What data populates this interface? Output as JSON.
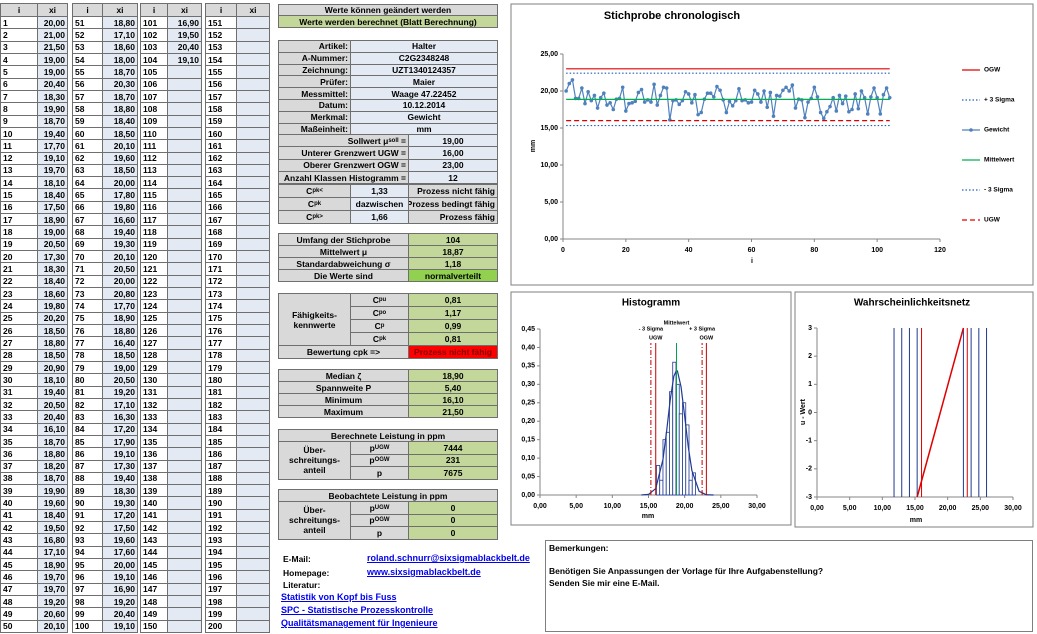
{
  "samples": {
    "header": [
      "i",
      "xi"
    ],
    "groups": [
      {
        "i": [
          1,
          2,
          3,
          4,
          5,
          6,
          7,
          8,
          9,
          10,
          11,
          12,
          13,
          14,
          15,
          16,
          17,
          18,
          19,
          20,
          21,
          22,
          23,
          24,
          25,
          26,
          27,
          28,
          29,
          30,
          31,
          32,
          33,
          34,
          35,
          36,
          37,
          38,
          39,
          40,
          41,
          42,
          43,
          44,
          45,
          46,
          47,
          48,
          49,
          50
        ],
        "xi": [
          "20,00",
          "21,00",
          "21,50",
          "19,00",
          "19,00",
          "20,40",
          "18,30",
          "19,90",
          "18,70",
          "19,40",
          "17,70",
          "19,10",
          "19,70",
          "18,10",
          "18,40",
          "17,50",
          "18,90",
          "19,00",
          "20,50",
          "17,30",
          "18,30",
          "18,40",
          "18,60",
          "19,80",
          "20,20",
          "18,50",
          "18,80",
          "18,50",
          "20,90",
          "18,10",
          "19,40",
          "20,50",
          "20,40",
          "16,10",
          "18,70",
          "18,80",
          "18,20",
          "18,70",
          "19,90",
          "19,60",
          "18,40",
          "19,50",
          "16,80",
          "17,10",
          "18,90",
          "19,70",
          "19,70",
          "19,20",
          "20,60",
          "20,10"
        ]
      },
      {
        "i": [
          51,
          52,
          53,
          54,
          55,
          56,
          57,
          58,
          59,
          60,
          61,
          62,
          63,
          64,
          65,
          66,
          67,
          68,
          69,
          70,
          71,
          72,
          73,
          74,
          75,
          76,
          77,
          78,
          79,
          80,
          81,
          82,
          83,
          84,
          85,
          86,
          87,
          88,
          89,
          90,
          91,
          92,
          93,
          94,
          95,
          96,
          97,
          98,
          99,
          100
        ],
        "xi": [
          "18,80",
          "17,10",
          "18,60",
          "18,00",
          "18,70",
          "20,30",
          "18,70",
          "18,80",
          "18,40",
          "18,50",
          "20,10",
          "19,60",
          "18,50",
          "20,00",
          "17,80",
          "19,80",
          "16,60",
          "19,40",
          "19,30",
          "20,10",
          "20,50",
          "20,00",
          "20,80",
          "17,70",
          "18,90",
          "18,80",
          "16,40",
          "18,50",
          "19,00",
          "20,50",
          "19,20",
          "17,10",
          "16,30",
          "17,20",
          "17,90",
          "19,10",
          "17,30",
          "19,40",
          "18,30",
          "19,30",
          "17,20",
          "17,50",
          "19,60",
          "17,60",
          "20,00",
          "19,10",
          "16,90",
          "19,20",
          "20,40",
          "19,10"
        ]
      },
      {
        "i": [
          101,
          102,
          103,
          104,
          105,
          106,
          107,
          108,
          109,
          110,
          111,
          112,
          113,
          114,
          115,
          116,
          117,
          118,
          119,
          120,
          121,
          122,
          123,
          124,
          125,
          126,
          127,
          128,
          129,
          130,
          131,
          132,
          133,
          134,
          135,
          136,
          137,
          138,
          139,
          140,
          141,
          142,
          143,
          144,
          145,
          146,
          147,
          148,
          149,
          150
        ],
        "xi": [
          "16,90",
          "19,50",
          "20,40",
          "19,10"
        ]
      },
      {
        "i": [
          151,
          152,
          153,
          154,
          155,
          156,
          157,
          158,
          159,
          160,
          161,
          162,
          163,
          164,
          165,
          166,
          167,
          168,
          169,
          170,
          171,
          172,
          173,
          174,
          175,
          176,
          177,
          178,
          179,
          180,
          181,
          182,
          183,
          184,
          185,
          186,
          187,
          188,
          189,
          190,
          191,
          192,
          193,
          194,
          195,
          196,
          197,
          198,
          199,
          200
        ]
      }
    ]
  },
  "status": {
    "editable": "Werte können geändert werden",
    "computed": "Werte werden berechnet (Blatt Berechnung)"
  },
  "master_data": [
    [
      "Artikel:",
      "Halter"
    ],
    [
      "A-Nummer:",
      "C2G2348248"
    ],
    [
      "Zeichnung:",
      "UZT1340124357"
    ],
    [
      "Prüfer:",
      "Maier"
    ],
    [
      "Messmittel:",
      "Waage 47.22452"
    ],
    [
      "Datum:",
      "10.12.2014"
    ],
    [
      "Merkmal:",
      "Gewicht"
    ],
    [
      "Maßeinheit:",
      "mm"
    ]
  ],
  "limits": [
    [
      {
        "base": "Sollwert μ",
        "sub": "soll",
        "tail": " ="
      },
      "19,00"
    ],
    [
      "Unterer Grenzwert UGW =",
      "16,00"
    ],
    [
      "Oberer Grenzwert OGW =",
      "23,00"
    ],
    [
      "Anzahl Klassen Histogramm =",
      "12"
    ]
  ],
  "thresholds": [
    [
      {
        "base": "C",
        "sub": "pk<"
      },
      "1,33",
      "Prozess nicht fähig"
    ],
    [
      {
        "base": "C",
        "sub": "pk"
      },
      "dazwischen",
      "Prozess bedingt fähig"
    ],
    [
      {
        "base": "C",
        "sub": "pk>"
      },
      "1,66",
      "Prozess fähig"
    ]
  ],
  "sample_stats": [
    [
      "Umfang der Stichprobe",
      "104"
    ],
    [
      "Mittelwert μ",
      "18,87"
    ],
    [
      "Standardabweichung σ",
      "1,18"
    ],
    [
      "Die Werte sind",
      "normalverteilt"
    ]
  ],
  "capability": {
    "label": "Fähigkeits-kennwerte",
    "rows": [
      [
        {
          "base": "C",
          "sub": "pu"
        },
        "0,81"
      ],
      [
        {
          "base": "C",
          "sub": "po"
        },
        "1,17"
      ],
      [
        {
          "base": "C",
          "sub": "p"
        },
        "0,99"
      ],
      [
        {
          "base": "C",
          "sub": "pk"
        },
        "0,81"
      ]
    ],
    "rating": [
      "Bewertung cpk =>",
      "Prozess nicht fähig"
    ]
  },
  "position_stats": [
    [
      "Median ζ",
      "18,90"
    ],
    [
      "Spannweite P",
      "5,40"
    ],
    [
      "Minimum",
      "16,10"
    ],
    [
      "Maximum",
      "21,50"
    ]
  ],
  "calculated_ppm": {
    "title": "Berechnete Leistung in ppm",
    "label": "Über- schreitungs- anteil",
    "rows": [
      [
        {
          "base": "p",
          "sub": "UGW"
        },
        "7444"
      ],
      [
        {
          "base": "p",
          "sub": "OGW"
        },
        "231"
      ],
      [
        "p",
        "7675"
      ]
    ]
  },
  "observed_ppm": {
    "title": "Beobachtete Leistung in ppm",
    "label": "Über- schreitungs- anteil",
    "rows": [
      [
        {
          "base": "p",
          "sub": "UGW"
        },
        "0"
      ],
      [
        {
          "base": "p",
          "sub": "OGW"
        },
        "0"
      ],
      [
        "p",
        "0"
      ]
    ]
  },
  "contact": {
    "email_label": "E-Mail:",
    "email": "roland.schnurr@sixsigmablackbelt.de",
    "homepage_label": "Homepage:",
    "homepage": "www.sixsigmablackbelt.de",
    "literature_label": "Literatur:",
    "literature": [
      "Statistik von Kopf bis Fuss",
      "SPC - Statistische Prozesskontrolle",
      "Qualitätsmanagement für Ingenieure"
    ]
  },
  "remarks": {
    "title": "Bemerkungen:",
    "lines": [
      "Benötigen Sie Anpassungen der Vorlage für Ihre Aufgabenstellung?",
      "Senden Sie mir eine E-Mail."
    ]
  },
  "chart_data": [
    {
      "type": "line",
      "title": "Stichprobe chronologisch",
      "x_label": "i",
      "y_label": "mm",
      "xlim": [
        0,
        120
      ],
      "xticks": [
        0,
        20,
        40,
        60,
        80,
        100,
        120
      ],
      "ylim": [
        0,
        25
      ],
      "yticks": [
        {
          "value": 0,
          "label": "0,00"
        },
        {
          "value": 5,
          "label": "5,00"
        },
        {
          "value": 10,
          "label": "10,00"
        },
        {
          "value": 15,
          "label": "15,00"
        },
        {
          "value": 20,
          "label": "20,00"
        },
        {
          "value": 25,
          "label": "25,00"
        }
      ],
      "series": [
        {
          "name": "OGW",
          "color": "#e00000",
          "dash": "solid",
          "value": 23
        },
        {
          "name": "+ 3 Sigma",
          "color": "#1f5fbf",
          "dash": "dotted",
          "value": 22.41
        },
        {
          "name": "Gewicht",
          "color": "#4f81bd",
          "dash": "solid",
          "x": [
            1,
            2,
            3,
            4,
            5,
            6,
            7,
            8,
            9,
            10,
            11,
            12,
            13,
            14,
            15,
            16,
            17,
            18,
            19,
            20,
            21,
            22,
            23,
            24,
            25,
            26,
            27,
            28,
            29,
            30,
            31,
            32,
            33,
            34,
            35,
            36,
            37,
            38,
            39,
            40,
            41,
            42,
            43,
            44,
            45,
            46,
            47,
            48,
            49,
            50,
            51,
            52,
            53,
            54,
            55,
            56,
            57,
            58,
            59,
            60,
            61,
            62,
            63,
            64,
            65,
            66,
            67,
            68,
            69,
            70,
            71,
            72,
            73,
            74,
            75,
            76,
            77,
            78,
            79,
            80,
            81,
            82,
            83,
            84,
            85,
            86,
            87,
            88,
            89,
            90,
            91,
            92,
            93,
            94,
            95,
            96,
            97,
            98,
            99,
            100,
            101,
            102,
            103,
            104
          ],
          "values": [
            20,
            21,
            21.5,
            19,
            19,
            20.4,
            18.3,
            19.9,
            18.7,
            19.4,
            17.7,
            19.1,
            19.7,
            18.1,
            18.4,
            17.5,
            18.9,
            19,
            20.5,
            17.3,
            18.3,
            18.4,
            18.6,
            19.8,
            20.2,
            18.5,
            18.8,
            18.5,
            20.9,
            18.1,
            19.4,
            20.5,
            20.4,
            16.1,
            18.7,
            18.8,
            18.2,
            18.7,
            19.9,
            19.6,
            18.4,
            19.5,
            16.8,
            17.1,
            18.9,
            19.7,
            19.7,
            19.2,
            20.6,
            20.1,
            18.8,
            17.1,
            18.6,
            18,
            18.7,
            20.3,
            18.7,
            18.8,
            18.4,
            18.5,
            20.1,
            19.6,
            18.5,
            20,
            17.8,
            19.8,
            16.6,
            19.4,
            19.3,
            20.1,
            20.5,
            20,
            20.8,
            17.7,
            18.9,
            18.8,
            16.4,
            18.5,
            19,
            20.5,
            19.2,
            17.1,
            16.3,
            17.2,
            17.9,
            19.1,
            17.3,
            19.4,
            18.3,
            19.3,
            17.2,
            17.5,
            19.6,
            17.6,
            20,
            19.1,
            16.9,
            19.2,
            20.4,
            19.1,
            16.9,
            19.5,
            20.4,
            19.1
          ]
        },
        {
          "name": "Mittelwert",
          "color": "#00b050",
          "dash": "solid",
          "value": 18.87
        },
        {
          "name": "- 3 Sigma",
          "color": "#1f5fbf",
          "dash": "dotted",
          "value": 15.33
        },
        {
          "name": "UGW",
          "color": "#e00000",
          "dash": "dashed",
          "value": 16
        }
      ]
    },
    {
      "type": "histogram",
      "title": "Histogramm",
      "x_label": "mm",
      "color": "#1f3a93",
      "xlim": [
        0,
        30
      ],
      "xticks": [
        {
          "value": 0,
          "label": "0,00"
        },
        {
          "value": 5,
          "label": "5,00"
        },
        {
          "value": 10,
          "label": "10,00"
        },
        {
          "value": 15,
          "label": "15,00"
        },
        {
          "value": 20,
          "label": "20,00"
        },
        {
          "value": 25,
          "label": "25,00"
        },
        {
          "value": 30,
          "label": "30,00"
        }
      ],
      "ylim": [
        0,
        0.45
      ],
      "yticks": [
        {
          "value": 0,
          "label": "0,00"
        },
        {
          "value": 0.05,
          "label": "0,05"
        },
        {
          "value": 0.1,
          "label": "0,10"
        },
        {
          "value": 0.15,
          "label": "0,15"
        },
        {
          "value": 0.2,
          "label": "0,20"
        },
        {
          "value": 0.25,
          "label": "0,25"
        },
        {
          "value": 0.3,
          "label": "0,30"
        },
        {
          "value": 0.35,
          "label": "0,35"
        },
        {
          "value": 0.4,
          "label": "0,40"
        },
        {
          "value": 0.45,
          "label": "0,45"
        }
      ],
      "bins": [
        16.1,
        16.55,
        17,
        17.45,
        17.9,
        18.35,
        18.8,
        19.25,
        19.7,
        20.15,
        20.6,
        21.05,
        21.5
      ],
      "values": [
        0.08,
        0.04,
        0.15,
        0.17,
        0.28,
        0.36,
        0.3,
        0.22,
        0.25,
        0.19,
        0.04,
        0.06
      ],
      "curve": {
        "color": "#1f3a93",
        "x": [
          14,
          15,
          16,
          17,
          17.5,
          18,
          18.5,
          18.87,
          19,
          19.5,
          20,
          20.5,
          21,
          22,
          23,
          24
        ],
        "values": [
          0.0001,
          0.0016,
          0.0175,
          0.0963,
          0.1723,
          0.2575,
          0.3218,
          0.338,
          0.336,
          0.2931,
          0.2137,
          0.1302,
          0.0663,
          0.01,
          0.0007,
          0
        ]
      },
      "markers": [
        {
          "label": "- 3 Sigma",
          "value": 15.33,
          "color": "#c00000",
          "dash": "dashdot"
        },
        {
          "label": "UGW",
          "value": 16,
          "color": "#c00000",
          "dash": "solid"
        },
        {
          "label": "Mittelwert",
          "value": 18.87,
          "color": "#00a050",
          "dash": "solid"
        },
        {
          "label": "+ 3 Sigma",
          "value": 22.41,
          "color": "#c00000",
          "dash": "dashdot"
        },
        {
          "label": "OGW",
          "value": 23,
          "color": "#c00000",
          "dash": "solid"
        }
      ]
    },
    {
      "type": "probability",
      "title": "Wahrscheinlichkeitsnetz",
      "x_label": "mm",
      "y_label": "u - Wert",
      "xlim": [
        0,
        30
      ],
      "xticks": [
        {
          "value": 0,
          "label": "0,00"
        },
        {
          "value": 5,
          "label": "5,00"
        },
        {
          "value": 10,
          "label": "10,00"
        },
        {
          "value": 15,
          "label": "15,00"
        },
        {
          "value": 20,
          "label": "20,00"
        },
        {
          "value": 25,
          "label": "25,00"
        },
        {
          "value": 30,
          "label": "30,00"
        }
      ],
      "ylim": [
        -3,
        3
      ],
      "yticks": [
        -3,
        -2,
        -1,
        0,
        1,
        2,
        3
      ],
      "vlines": [
        {
          "value": 11.79,
          "color": "#1f3a93"
        },
        {
          "value": 12.97,
          "color": "#1f3a93"
        },
        {
          "value": 14.15,
          "color": "#1f3a93"
        },
        {
          "value": 15.33,
          "color": "#1f3a93"
        },
        {
          "value": 16,
          "color": "#e00000"
        },
        {
          "value": 23,
          "color": "#e00000"
        },
        {
          "value": 22.41,
          "color": "#1f3a93"
        },
        {
          "value": 23.59,
          "color": "#1f3a93"
        },
        {
          "value": 24.77,
          "color": "#1f3a93"
        },
        {
          "value": 25.95,
          "color": "#1f3a93"
        }
      ],
      "fit": {
        "color": "#e00000",
        "x": [
          15.33,
          22.41
        ],
        "values": [
          -3,
          3
        ]
      }
    }
  ]
}
